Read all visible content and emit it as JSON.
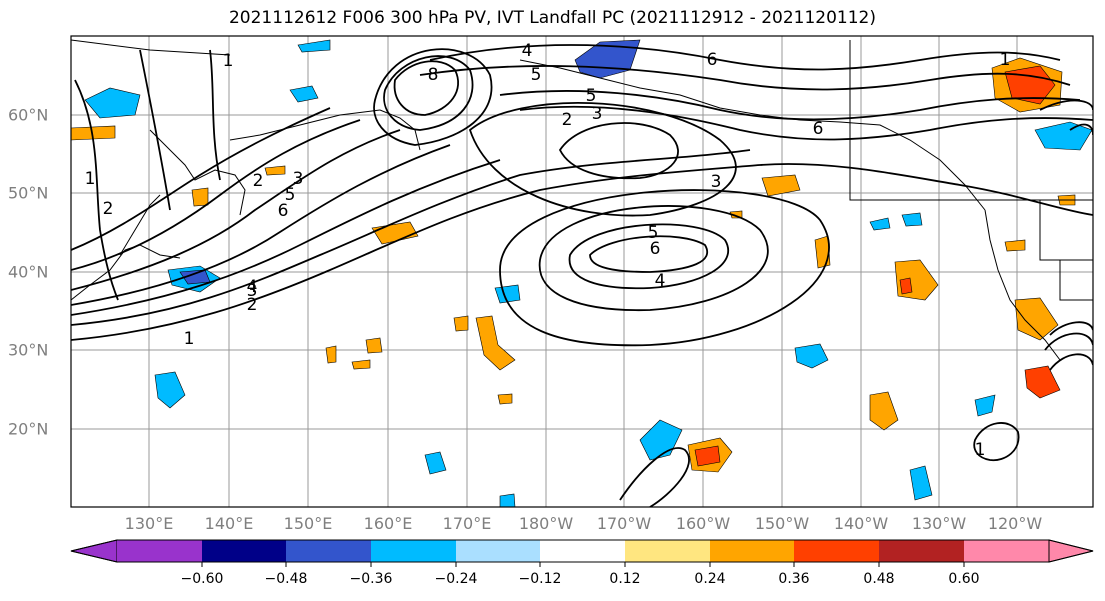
{
  "title": "2021112612 F006 300 hPa PV, IVT Landfall PC (2021112912 - 2021120112)",
  "lon_labels": [
    "130°E",
    "140°E",
    "150°E",
    "160°E",
    "170°E",
    "180°W",
    "170°W",
    "160°W",
    "150°W",
    "140°W",
    "130°W",
    "120°W"
  ],
  "lat_labels": [
    "60°N",
    "50°N",
    "40°N",
    "30°N",
    "20°N"
  ],
  "colorbar": {
    "ticks": [
      "−0.60",
      "−0.48",
      "−0.36",
      "−0.24",
      "−0.12",
      "0.12",
      "0.24",
      "0.36",
      "0.48",
      "0.60"
    ],
    "colors": [
      "#9933cc",
      "#000088",
      "#3355cc",
      "#00bbff",
      "#aadfff",
      "#ffffff",
      "#ffe680",
      "#ffa500",
      "#ff4000",
      "#b22222",
      "#ff88aa"
    ]
  },
  "contour_labels": [
    "1",
    "2",
    "3",
    "4",
    "5",
    "6",
    "8",
    "2",
    "3",
    "5",
    "6",
    "1",
    "2",
    "3",
    "5",
    "6",
    "4",
    "2",
    "3",
    "5",
    "6",
    "3",
    "4",
    "1",
    "2",
    "6",
    "1",
    "1"
  ]
}
